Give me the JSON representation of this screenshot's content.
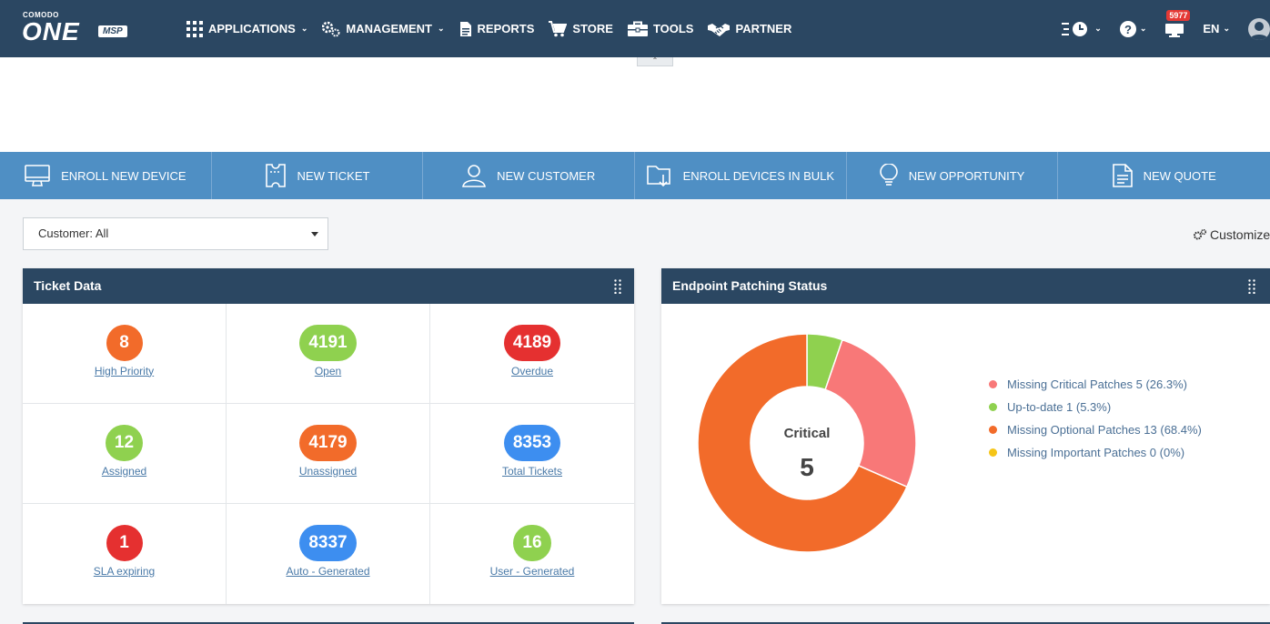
{
  "topbar": {
    "logo_small": "COMODO",
    "logo_big": "ONE",
    "logo_tag": "MSP",
    "nav": [
      {
        "label": "APPLICATIONS",
        "icon": "grid-icon",
        "caret": true
      },
      {
        "label": "MANAGEMENT",
        "icon": "gears-icon",
        "caret": true
      },
      {
        "label": "REPORTS",
        "icon": "document-icon",
        "caret": false
      },
      {
        "label": "STORE",
        "icon": "cart-icon",
        "caret": false
      },
      {
        "label": "TOOLS",
        "icon": "toolbox-icon",
        "caret": false
      },
      {
        "label": "PARTNER",
        "icon": "handshake-icon",
        "caret": false
      }
    ],
    "notification_count": "5977",
    "language": "EN"
  },
  "quickbar": [
    {
      "label": "ENROLL NEW DEVICE",
      "icon": "monitor-icon"
    },
    {
      "label": "NEW TICKET",
      "icon": "ticket-icon"
    },
    {
      "label": "NEW CUSTOMER",
      "icon": "user-icon"
    },
    {
      "label": "ENROLL DEVICES IN BULK",
      "icon": "folder-download-icon"
    },
    {
      "label": "NEW OPPORTUNITY",
      "icon": "lightbulb-icon"
    },
    {
      "label": "NEW QUOTE",
      "icon": "quote-document-icon"
    }
  ],
  "filter": {
    "customer_label": "Customer: All"
  },
  "customize_label": "Customize",
  "ticket_card": {
    "title": "Ticket Data",
    "cells": [
      {
        "value": "8",
        "label": "High Priority",
        "color": "#f26b2a"
      },
      {
        "value": "4191",
        "label": "Open",
        "color": "#8fd14f"
      },
      {
        "value": "4189",
        "label": "Overdue",
        "color": "#e53030"
      },
      {
        "value": "12",
        "label": "Assigned",
        "color": "#8fd14f"
      },
      {
        "value": "4179",
        "label": "Unassigned",
        "color": "#f26b2a"
      },
      {
        "value": "8353",
        "label": "Total Tickets",
        "color": "#3d8ef0"
      },
      {
        "value": "1",
        "label": "SLA expiring",
        "color": "#e53030"
      },
      {
        "value": "8337",
        "label": "Auto - Generated",
        "color": "#3d8ef0"
      },
      {
        "value": "16",
        "label": "User - Generated",
        "color": "#8fd14f"
      }
    ]
  },
  "patch_card": {
    "title": "Endpoint Patching Status",
    "center_label": "Critical",
    "center_value": "5"
  },
  "chart_data": {
    "type": "pie",
    "donut": true,
    "legend_position": "right",
    "slices": [
      {
        "label": "Missing Critical Patches",
        "value": 5,
        "percent": "26.3%",
        "color": "#f87878",
        "legend_text": "Missing Critical Patches 5 (26.3%)"
      },
      {
        "label": "Up-to-date",
        "value": 1,
        "percent": "5.3%",
        "color": "#8fd14f",
        "legend_text": "Up-to-date 1 (5.3%)"
      },
      {
        "label": "Missing Optional Patches",
        "value": 13,
        "percent": "68.4%",
        "color": "#f26b2a",
        "legend_text": "Missing Optional Patches 13 (68.4%)"
      },
      {
        "label": "Missing Important Patches",
        "value": 0,
        "percent": "0%",
        "color": "#f5c518",
        "legend_text": "Missing Important Patches 0 (0%)"
      }
    ]
  }
}
